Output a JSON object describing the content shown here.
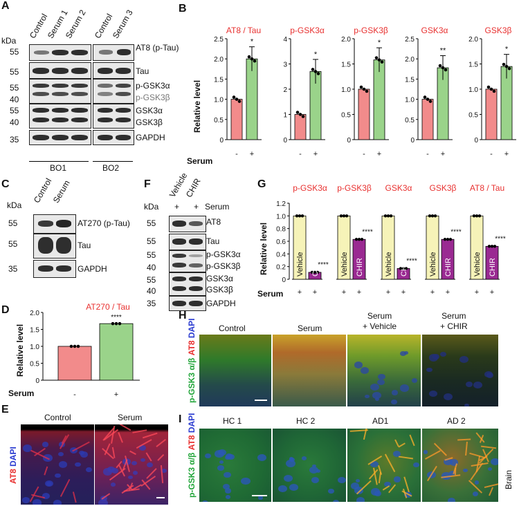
{
  "panels": {
    "A": {
      "letter": "A",
      "kda": "kDa",
      "lanes1": [
        "Control",
        "Serum 1",
        "Serum 2"
      ],
      "lanes2": [
        "Control",
        "Serum 3"
      ],
      "markers": [
        "55",
        "55",
        "55",
        "40",
        "55",
        "40",
        "35"
      ],
      "rows": [
        "AT8 (p-Tau)",
        "Tau",
        "p-GSK3α",
        "p-GSK3β",
        "GSK3α",
        "GSK3β",
        "GAPDH"
      ],
      "groups": [
        "BO1",
        "BO2"
      ]
    },
    "B": {
      "letter": "B",
      "ylabel": "Relative level",
      "serum_label": "Serum",
      "signs": [
        "-",
        "+"
      ]
    },
    "C": {
      "letter": "C",
      "kda": "kDa",
      "lanes": [
        "Control",
        "Serum"
      ],
      "markers": [
        "55",
        "55",
        "35"
      ],
      "rows": [
        "AT270 (p-Tau)",
        "Tau",
        "GAPDH"
      ]
    },
    "D": {
      "letter": "D",
      "ylabel": "Relative level",
      "serum_label": "Serum",
      "signs": [
        "-",
        "+"
      ]
    },
    "E": {
      "letter": "E",
      "conditions": [
        "Control",
        "Serum"
      ],
      "stain_red": "AT8",
      "stain_blue": "DAPI"
    },
    "F": {
      "letter": "F",
      "kda": "kDa",
      "lanes": [
        "Vehicle",
        "CHIR"
      ],
      "serum_label": "Serum",
      "signs": [
        "+",
        "+"
      ],
      "markers": [
        "55",
        "55",
        "55",
        "40",
        "55",
        "40",
        "35"
      ],
      "rows": [
        "AT8",
        "Tau",
        "p-GSK3α",
        "p-GSK3β",
        "GSK3α",
        "GSK3β",
        "GAPDH"
      ]
    },
    "G": {
      "letter": "G",
      "ylabel": "Relative level",
      "serum_label": "Serum",
      "signs": [
        "+",
        "+"
      ],
      "bar_labels": [
        "Vehicle",
        "CHIR"
      ]
    },
    "H": {
      "letter": "H",
      "conditions": [
        "Control",
        "Serum",
        "Serum\n+ Vehicle",
        "Serum\n+ CHIR"
      ],
      "stain_green": "p-GSK3 α/β",
      "stain_red": "AT8",
      "stain_blue": "DAPI"
    },
    "I": {
      "letter": "I",
      "conditions": [
        "HC 1",
        "HC 2",
        "AD1",
        "AD 2"
      ],
      "stain_green": "p-GSK3 α/β",
      "stain_red": "AT8",
      "stain_blue": "DAPI",
      "side_label": "Brain"
    }
  },
  "chart_data": [
    {
      "id": "B1",
      "type": "bar",
      "title": "AT8 / Tau",
      "categories": [
        "-",
        "+"
      ],
      "values": [
        1.0,
        2.0
      ],
      "ylim": [
        0,
        2.5
      ],
      "yticks": [
        0,
        0.5,
        1.0,
        1.5,
        2.0,
        2.5
      ],
      "annotation": "*"
    },
    {
      "id": "B2",
      "type": "bar",
      "title": "p-GSK3α",
      "categories": [
        "-",
        "+"
      ],
      "values": [
        1.0,
        2.7
      ],
      "ylim": [
        0,
        4
      ],
      "yticks": [
        0,
        1,
        2,
        3,
        4
      ],
      "annotation": "*"
    },
    {
      "id": "B3",
      "type": "bar",
      "title": "p-GSK3β",
      "categories": [
        "-",
        "+"
      ],
      "values": [
        1.0,
        1.58
      ],
      "ylim": [
        0,
        2.0
      ],
      "yticks": [
        0,
        0.5,
        1.0,
        1.5,
        2.0
      ],
      "annotation": "*"
    },
    {
      "id": "B4",
      "type": "bar",
      "title": "GSK3α",
      "categories": [
        "-",
        "+"
      ],
      "values": [
        1.0,
        1.78
      ],
      "ylim": [
        0,
        2.5
      ],
      "yticks": [
        0,
        0.5,
        1.0,
        1.5,
        2.0,
        2.5
      ],
      "annotation": "**"
    },
    {
      "id": "B5",
      "type": "bar",
      "title": "GSK3β",
      "categories": [
        "-",
        "+"
      ],
      "values": [
        1.0,
        1.45
      ],
      "ylim": [
        0,
        2.0
      ],
      "yticks": [
        0,
        0.5,
        1.0,
        1.5,
        2.0
      ],
      "annotation": "*"
    },
    {
      "id": "D",
      "type": "bar",
      "title": "AT270 / Tau",
      "categories": [
        "-",
        "+"
      ],
      "values": [
        1.0,
        1.67
      ],
      "ylim": [
        0,
        2.0
      ],
      "yticks": [
        0,
        0.5,
        1.0,
        1.5,
        2.0
      ],
      "annotation": "****"
    },
    {
      "id": "G",
      "type": "bar",
      "groups": [
        "p-GSK3α",
        "p-GSK3β",
        "GSK3α",
        "GSK3β",
        "AT8 / Tau"
      ],
      "series": [
        {
          "name": "Vehicle",
          "values": [
            1.0,
            1.0,
            1.0,
            1.0,
            1.0
          ]
        },
        {
          "name": "CHIR",
          "values": [
            0.11,
            0.63,
            0.17,
            0.63,
            0.52
          ]
        }
      ],
      "ylim": [
        0,
        1.2
      ],
      "yticks": [
        0,
        0.2,
        0.4,
        0.6,
        0.8,
        1.0,
        1.2
      ],
      "annotation": "****"
    }
  ]
}
